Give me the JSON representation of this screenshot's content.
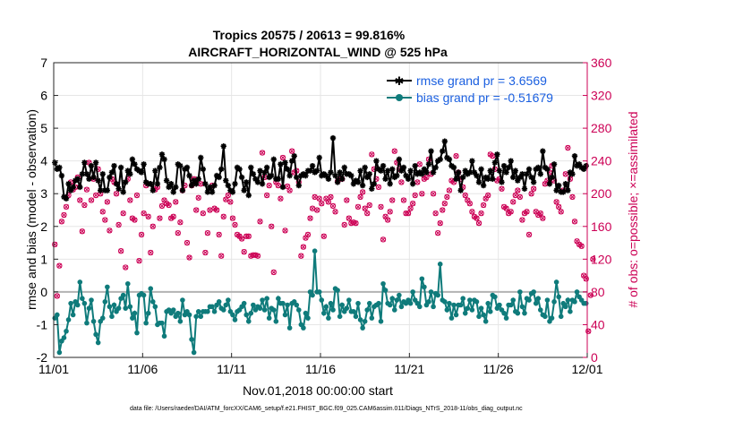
{
  "chart_data": {
    "type": "line",
    "title_line1": "Tropics 20575 / 20613 = 99.816%",
    "title_line2": "AIRCRAFT_HORIZONTAL_WIND @ 525 hPa",
    "ylabel": "rmse and bias (model - observation)",
    "y2label": "# of obs: o=possible; ×=assimilated",
    "xlabel": "Nov.01,2018 00:00:00 start",
    "footnote": "data file: /Users/raeder/DAI/ATM_forcXX/CAM6_setup/f.e21.FHIST_BGC.f09_025.CAM6assim.011/Diags_NTrS_2018-11/obs_diag_output.nc",
    "xlim": [
      0,
      30
    ],
    "ylim": [
      -2,
      7
    ],
    "y2lim": [
      0,
      360
    ],
    "x_ticks": [
      0,
      5,
      10,
      15,
      20,
      25,
      30
    ],
    "x_tick_labels": [
      "11/01",
      "11/06",
      "11/11",
      "11/16",
      "11/21",
      "11/26",
      "12/01"
    ],
    "y_ticks": [
      "-2",
      "-1",
      "0",
      "1",
      "2",
      "3",
      "4",
      "5",
      "6",
      "7"
    ],
    "y2_ticks": [
      "0",
      "40",
      "80",
      "120",
      "160",
      "200",
      "240",
      "280",
      "320",
      "360"
    ],
    "legend": {
      "rmse_label": "rmse grand pr = 3.6569",
      "bias_label": "bias grand pr = -0.51679",
      "position": "top-right"
    },
    "colors": {
      "rmse": "#000000",
      "bias": "#0f7b7b",
      "obs": "#cc0055",
      "zero_line": "#b3b3b3",
      "grid": "#e6e6e6"
    },
    "series": [
      {
        "name": "rmse",
        "values": [
          3.95,
          3.75,
          3.8,
          3.55,
          2.9,
          2.85,
          3.3,
          3.1,
          3.2,
          3.4,
          3.45,
          3.2,
          3.6,
          3.95,
          3.6,
          3.45,
          3.85,
          3.5,
          3.95,
          3.4,
          3.1,
          3.6,
          3.1,
          3.1,
          3.5,
          3.65,
          3.85,
          3.3,
          3.15,
          3.8,
          3.05,
          3.35,
          3.7,
          3.6,
          4.05,
          3.9,
          3.75,
          3.7,
          3.65,
          3.9,
          3.35,
          3.3,
          3.3,
          3.1,
          3.7,
          3.3,
          3.8,
          4.2,
          4.05,
          3.4,
          3.2,
          3.3,
          3.05,
          3.2,
          3.9,
          3.85,
          3.1,
          3.75,
          3.8,
          3.55,
          3.25,
          3.4,
          3.3,
          3.45,
          4.1,
          3.75,
          3.3,
          3.05,
          3.2,
          3.05,
          3.25,
          3.55,
          3.5,
          3.75,
          4.45,
          3.4,
          3.25,
          3.1,
          3.05,
          3.3,
          3.8,
          3.75,
          3.5,
          3.1,
          3.35,
          2.95,
          3.8,
          3.6,
          3.45,
          3.35,
          3.7,
          3.3,
          3.65,
          3.8,
          3.5,
          3.55,
          4.05,
          3.45,
          3.45,
          3.9,
          3.2,
          3.95,
          3.75,
          3.55,
          4.0,
          4.15,
          3.5,
          3.25,
          3.55,
          3.6,
          3.55,
          3.7,
          3.7,
          3.85,
          3.65,
          3.7,
          4.1,
          3.55,
          3.6,
          3.55,
          3.45,
          3.65,
          4.7,
          3.55,
          3.35,
          3.65,
          3.45,
          3.8,
          3.6,
          3.6,
          3.55,
          3.3,
          3.4,
          3.35,
          3.7,
          3.25,
          3.8,
          3.5,
          3.6,
          3.15,
          3.3,
          4.0,
          3.75,
          3.7,
          3.85,
          3.45,
          3.7,
          3.3,
          3.75,
          3.5,
          3.55,
          4.05,
          3.7,
          3.8,
          3.55,
          3.45,
          3.7,
          3.3,
          3.85,
          3.6,
          3.65,
          3.6,
          3.75,
          3.65,
          3.9,
          4.3,
          3.65,
          3.8,
          4.0,
          4.05,
          4.3,
          4.6,
          4.1,
          4.05,
          3.85,
          3.8,
          3.45,
          3.65,
          3.1,
          3.5,
          3.7,
          3.6,
          3.65,
          4.0,
          3.65,
          3.55,
          3.35,
          3.75,
          3.25,
          3.5,
          3.45,
          3.7,
          3.45,
          3.95,
          4.2,
          3.7,
          3.35,
          3.85,
          3.65,
          3.8,
          4.0,
          3.5,
          3.7,
          3.4,
          3.5,
          3.6,
          3.15,
          3.6,
          3.75,
          3.5,
          3.35,
          3.75,
          3.8,
          3.6,
          4.3,
          3.8,
          3.75,
          3.3,
          3.5,
          3.9,
          3.1,
          3.25,
          3.05,
          3.05,
          3.3,
          3.1,
          3.65,
          3.6,
          4.15,
          3.85,
          3.9,
          3.8,
          3.75,
          3.85
        ]
      },
      {
        "name": "bias",
        "values": [
          -0.8,
          -0.7,
          -1.85,
          -1.5,
          -1.4,
          -1.2,
          -0.85,
          -0.35,
          -0.7,
          -0.3,
          -0.4,
          0.3,
          -0.2,
          -0.35,
          -0.95,
          -0.5,
          -0.25,
          -0.9,
          -1.3,
          -1.55,
          -0.9,
          -0.8,
          -0.3,
          0.15,
          -0.45,
          -0.75,
          -0.4,
          -0.6,
          -0.5,
          -0.2,
          -0.1,
          -0.5,
          0.25,
          -0.45,
          -0.8,
          -0.65,
          -1.25,
          -0.1,
          -0.05,
          -0.1,
          -0.95,
          -0.65,
          0.1,
          -0.3,
          -0.45,
          -1.0,
          -0.95,
          -0.95,
          -1.35,
          -0.6,
          -0.55,
          -0.65,
          -0.55,
          -0.75,
          -0.65,
          -0.9,
          -0.25,
          -0.7,
          -0.6,
          -0.7,
          -1.45,
          -1.85,
          -0.75,
          -0.6,
          -0.75,
          -0.6,
          -0.6,
          -0.6,
          -0.45,
          -0.45,
          -0.6,
          -0.4,
          -0.3,
          -0.5,
          -0.55,
          -0.4,
          -0.25,
          -0.6,
          -0.7,
          -0.85,
          -0.6,
          -0.55,
          -0.45,
          -0.35,
          -0.7,
          -0.9,
          -0.65,
          -0.4,
          -0.55,
          -0.45,
          -0.5,
          -0.25,
          -0.55,
          -0.2,
          -0.8,
          -0.5,
          -0.55,
          -0.9,
          -0.2,
          -0.35,
          -0.35,
          -0.7,
          -0.4,
          -1.1,
          -0.35,
          -0.3,
          -0.4,
          -0.55,
          -1.0,
          -1.1,
          -0.65,
          -0.8,
          0.0,
          -0.1,
          1.25,
          0.0,
          0.0,
          -0.25,
          -0.65,
          -0.45,
          -0.8,
          -0.35,
          -0.55,
          0.1,
          0.05,
          -0.75,
          -0.4,
          -0.6,
          -0.5,
          -0.25,
          -0.6,
          -0.6,
          -0.75,
          -0.35,
          -0.85,
          -1.1,
          -0.9,
          -0.55,
          -0.35,
          -0.8,
          -0.45,
          -0.4,
          -0.35,
          -0.9,
          0.25,
          0.05,
          -0.35,
          -0.4,
          -0.2,
          -0.55,
          -0.25,
          -0.1,
          -0.45,
          -0.3,
          -0.35,
          -0.25,
          -0.35,
          0.0,
          -0.25,
          -0.35,
          -0.45,
          0.4,
          0.15,
          -0.4,
          -0.3,
          0.0,
          -0.45,
          -0.05,
          -0.1,
          0.85,
          -0.25,
          -0.3,
          -0.55,
          -0.35,
          -0.8,
          -0.4,
          -0.7,
          -0.4,
          -0.4,
          -0.2,
          -0.65,
          -0.5,
          -0.25,
          -0.55,
          -0.25,
          -0.3,
          -0.75,
          -0.5,
          -0.7,
          -0.9,
          -0.35,
          -0.6,
          -0.1,
          -0.15,
          -0.5,
          -0.4,
          -0.55,
          -0.65,
          -0.8,
          -0.4,
          -0.4,
          -0.25,
          -0.6,
          -0.65,
          0.0,
          -0.45,
          -0.65,
          -0.2,
          -0.25,
          -0.05,
          0.0,
          -0.35,
          -0.2,
          -0.55,
          -0.7,
          -0.75,
          -0.25,
          -0.9,
          -0.8,
          -0.3,
          0.3,
          -0.15,
          -0.75,
          -0.35,
          -0.45,
          -0.25,
          -0.6,
          -0.25,
          -0.3,
          0.0,
          -0.15,
          -0.25,
          -0.35,
          -0.35
        ]
      },
      {
        "name": "obs_possible_and_assimilated",
        "values": [
          138,
          75,
          112,
          166,
          174,
          184,
          198,
          214,
          205,
          208,
          220,
          192,
          154,
          186,
          205,
          238,
          192,
          218,
          198,
          230,
          200,
          178,
          168,
          190,
          155,
          218,
          214,
          200,
          162,
          130,
          176,
          110,
          218,
          192,
          170,
          168,
          198,
          118,
          150,
          176,
          210,
          172,
          128,
          160,
          205,
          208,
          170,
          185,
          192,
          188,
          186,
          170,
          172,
          190,
          152,
          165,
          204,
          210,
          140,
          122,
          210,
          218,
          180,
          195,
          212,
          176,
          128,
          152,
          180,
          210,
          182,
          180,
          150,
          124,
          172,
          193,
          198,
          190,
          170,
          162,
          150,
          148,
          145,
          129,
          148,
          148,
          124,
          125,
          125,
          124,
          166,
          250,
          220,
          198,
          210,
          160,
          104,
          214,
          210,
          194,
          244,
          155,
          209,
          204,
          252,
          226,
          228,
          214,
          124,
          135,
          146,
          150,
          170,
          182,
          196,
          180,
          194,
          188,
          148,
          194,
          190,
          196,
          185,
          178,
          215,
          218,
          218,
          162,
          192,
          170,
          164,
          165,
          164,
          184,
          196,
          202,
          182,
          176,
          186,
          248,
          230,
          218,
          208,
          184,
          144,
          172,
          168,
          178,
          192,
          252,
          238,
          230,
          214,
          192,
          176,
          176,
          182,
          188,
          198,
          214,
          236,
          200,
          218,
          220,
          242,
          224,
          200,
          176,
          152,
          164,
          180,
          188,
          196,
          204,
          216,
          214,
          246,
          226,
          218,
          208,
          198,
          192,
          188,
          178,
          172,
          170,
          164,
          176,
          186,
          194,
          198,
          248,
          246,
          230,
          216,
          218,
          206,
          184,
          182,
          176,
          178,
          190,
          198,
          204,
          196,
          168,
          176,
          178,
          150,
          200,
          206,
          178,
          174,
          176,
          170,
          212,
          216,
          226,
          234,
          216,
          190,
          184,
          178,
          204,
          224,
          256,
          218,
          196,
          166,
          142,
          138,
          136,
          100,
          96,
          32,
          76,
          120
        ]
      }
    ]
  }
}
